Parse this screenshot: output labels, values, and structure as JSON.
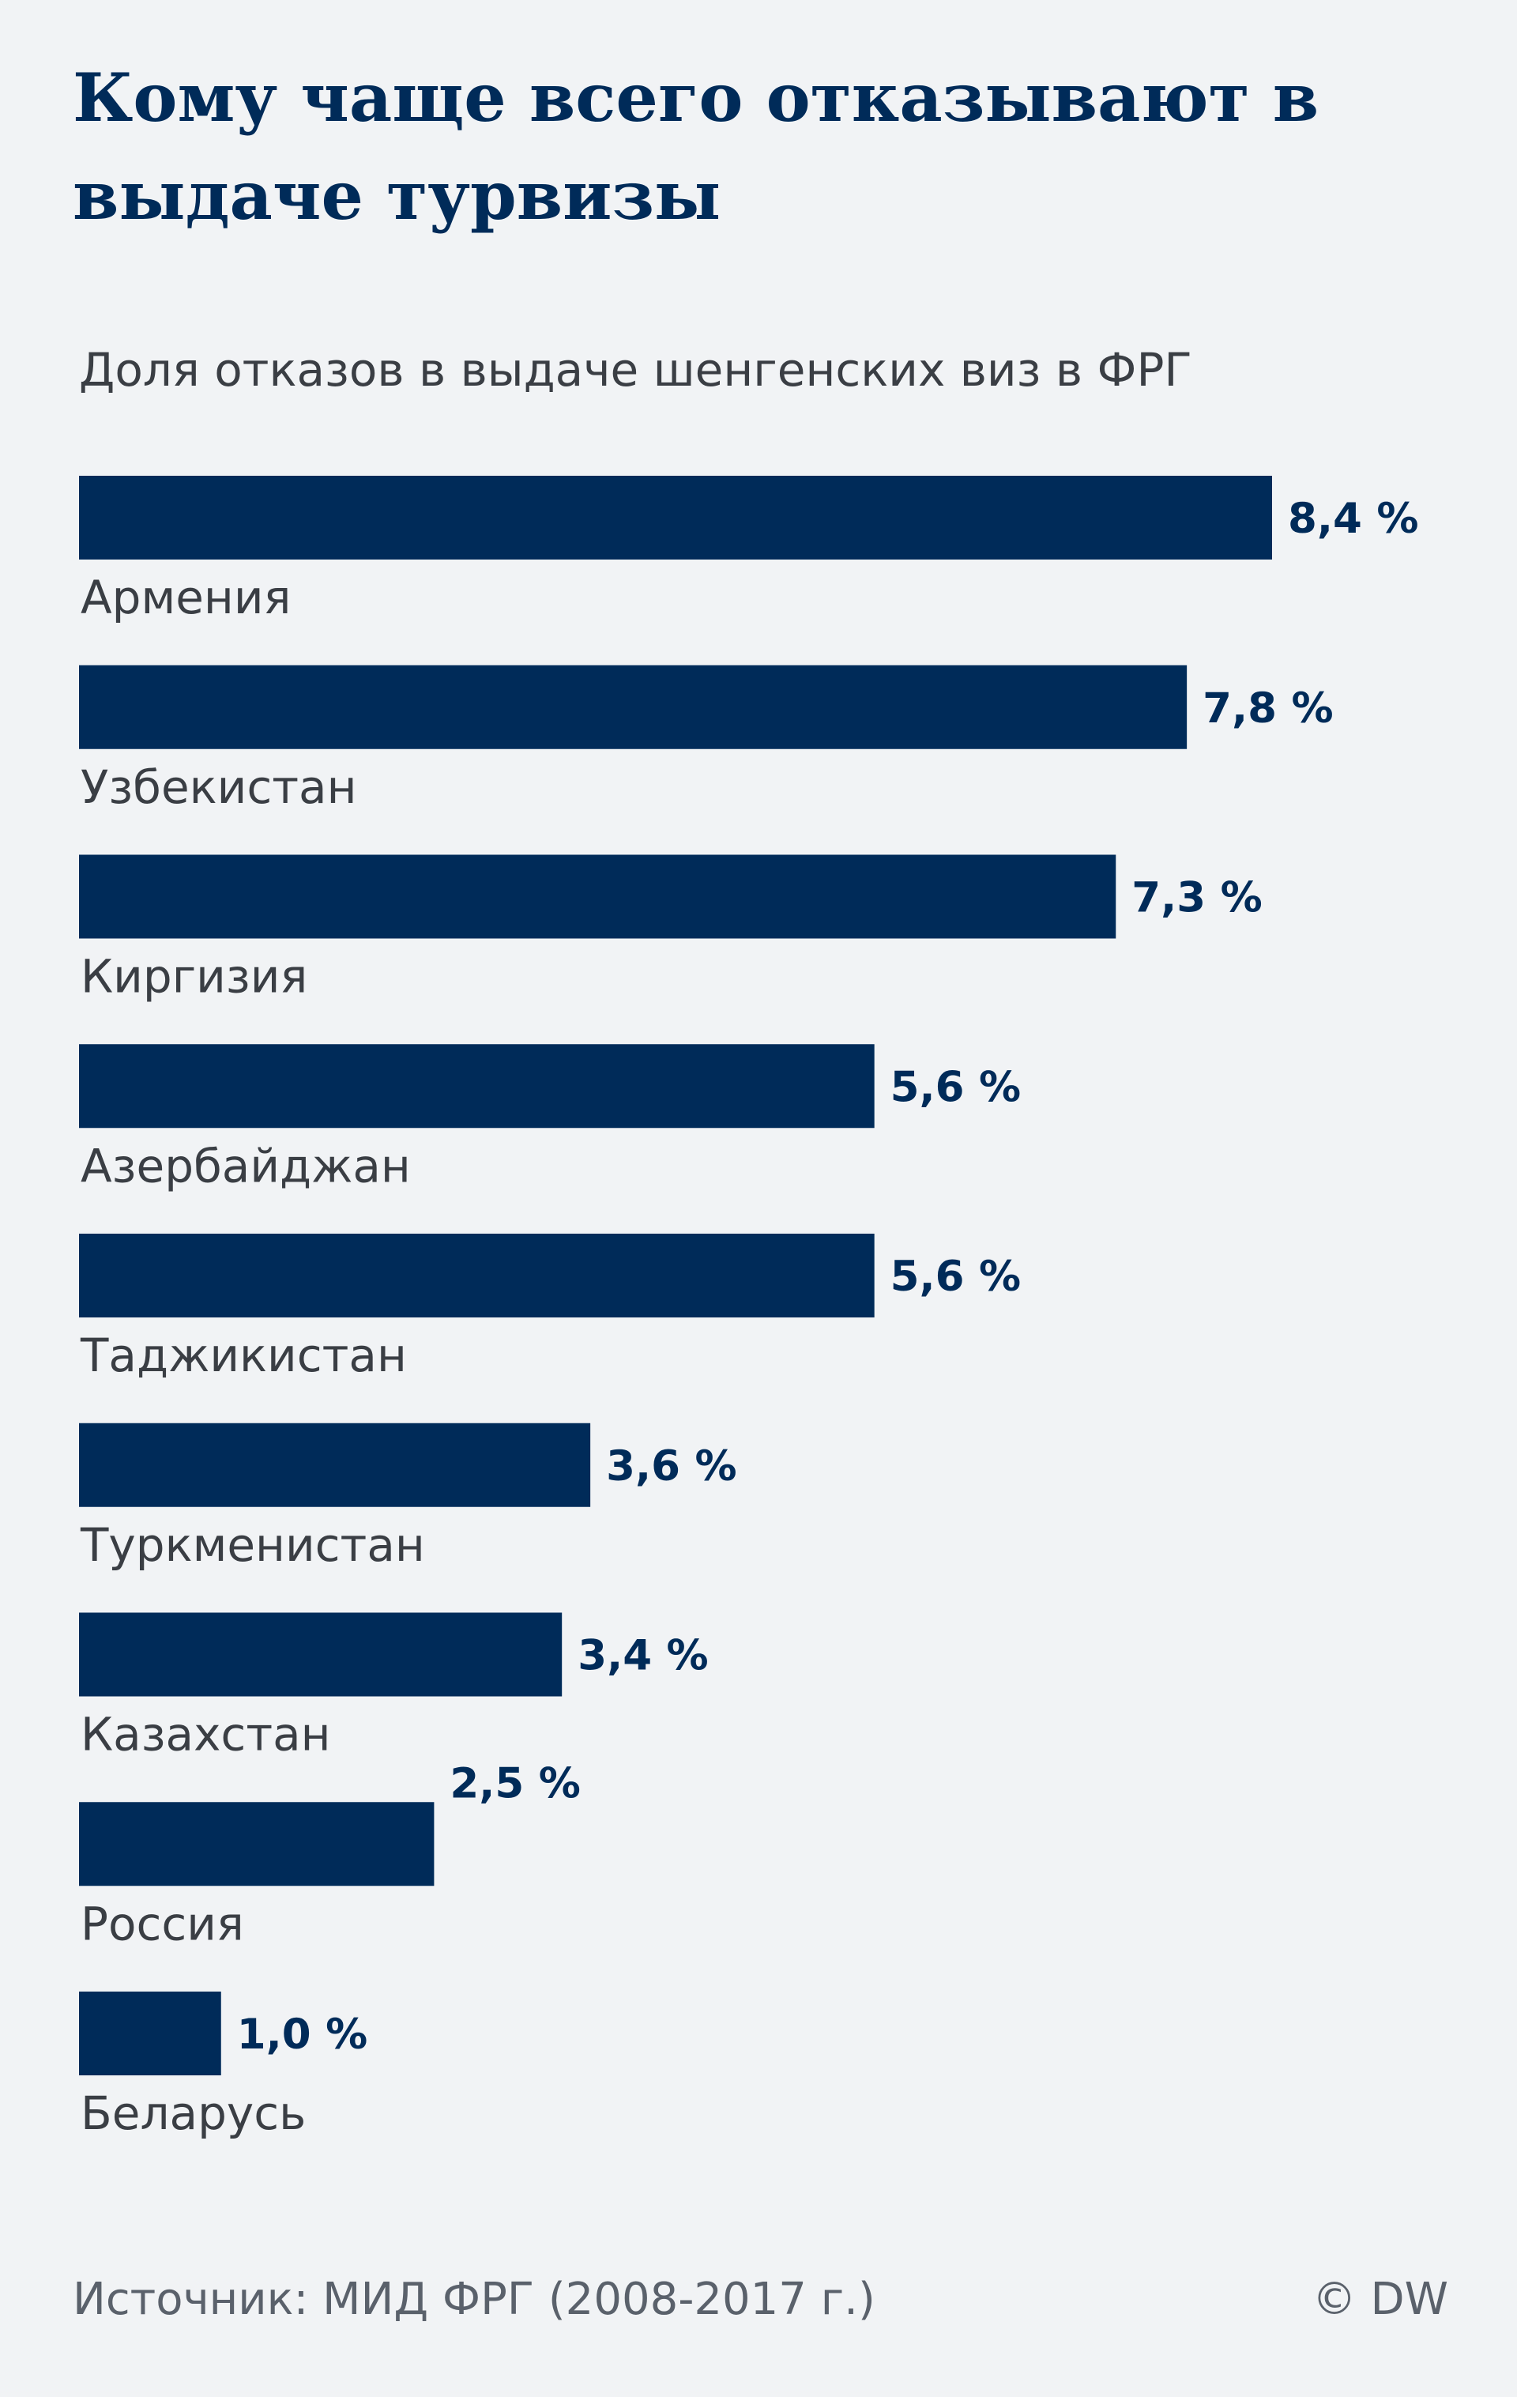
{
  "title": "Кому чаще всего отказывают в выдаче турвизы",
  "subtitle": "Доля отказов в выдаче шенгенских виз в ФРГ",
  "source": "Источник: МИД ФРГ (2008-2017 г.)",
  "copyright": "© DW",
  "colors": {
    "bar": "#002b59",
    "background": "#f1f3f5"
  },
  "chart_data": {
    "type": "bar",
    "orientation": "horizontal",
    "title": "Кому чаще всего отказывают в выдаче турвизы",
    "subtitle": "Доля отказов в выдаче шенгенских виз в ФРГ",
    "categories": [
      "Армения",
      "Узбекистан",
      "Киргизия",
      "Азербайджан",
      "Таджикистан",
      "Туркменистан",
      "Казахстан",
      "Россия",
      "Беларусь"
    ],
    "values": [
      8.4,
      7.8,
      7.3,
      5.6,
      5.6,
      3.6,
      3.4,
      2.5,
      1.0
    ],
    "value_labels": [
      "8,4 %",
      "7,8 %",
      "7,3 %",
      "5,6 %",
      "5,6 %",
      "3,6 %",
      "3,4 %",
      "2,5 %",
      "1,0 %"
    ],
    "grid": false,
    "legend": "none"
  }
}
